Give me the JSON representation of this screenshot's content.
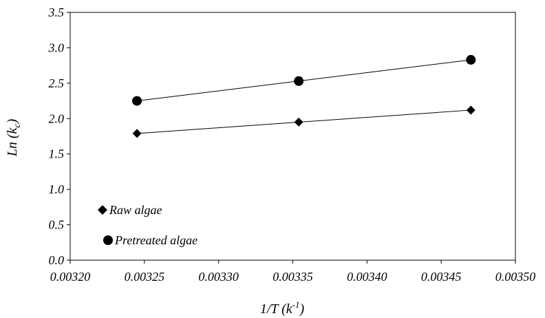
{
  "chart_data": {
    "type": "scatter",
    "title": "",
    "xlabel": {
      "base": "1/T (k",
      "sup": "-1",
      "tail": ")"
    },
    "ylabel": {
      "base": "Ln (k",
      "sub": "c",
      "tail": ")"
    },
    "xlim": [
      0.0032,
      0.0035
    ],
    "ylim": [
      0,
      3.5
    ],
    "x_ticks": [
      "0.00320",
      "0.00325",
      "0.00330",
      "0.00335",
      "0.00340",
      "0.00345",
      "0.00350"
    ],
    "y_ticks": [
      "0.0",
      "0.5",
      "1.0",
      "1.5",
      "2.0",
      "2.5",
      "3.0",
      "3.5"
    ],
    "grid": false,
    "legend_position": "bottom-left",
    "trendlines": true,
    "series": [
      {
        "name": "Raw algae",
        "marker": "diamond",
        "color": "#000000",
        "x": [
          0.003245,
          0.003354,
          0.00347
        ],
        "y": [
          1.79,
          1.95,
          2.12
        ]
      },
      {
        "name": "Pretreated algae",
        "marker": "circle",
        "color": "#000000",
        "x": [
          0.003245,
          0.003354,
          0.00347
        ],
        "y": [
          2.25,
          2.53,
          2.83
        ]
      }
    ]
  }
}
